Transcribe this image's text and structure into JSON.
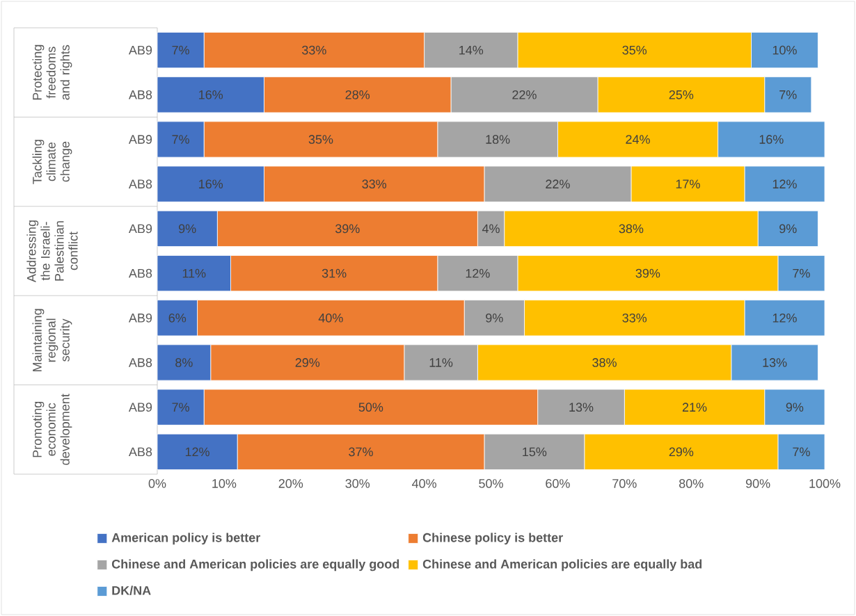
{
  "chart_data": {
    "type": "bar",
    "orientation": "horizontal",
    "stacked": true,
    "legend": "bottom",
    "categories": [
      "AB9",
      "AB8",
      "AB9",
      "AB8",
      "AB9",
      "AB8",
      "AB9",
      "AB8",
      "AB9",
      "AB8"
    ],
    "annotations": [
      "Protecting freedoms and rights",
      "Tackling climate change",
      "Addressing the Israeli-Palestinian conflict",
      "Maintaining regional security",
      "Promoting economic development"
    ],
    "xlim": [
      0,
      100
    ],
    "xticks": [
      {
        "value": 0,
        "label": "0%"
      },
      {
        "value": 10,
        "label": "10%"
      },
      {
        "value": 20,
        "label": "20%"
      },
      {
        "value": 30,
        "label": "30%"
      },
      {
        "value": 40,
        "label": "40%"
      },
      {
        "value": 50,
        "label": "50%"
      },
      {
        "value": 60,
        "label": "60%"
      },
      {
        "value": 70,
        "label": "70%"
      },
      {
        "value": 80,
        "label": "80%"
      },
      {
        "value": 90,
        "label": "90%"
      },
      {
        "value": 100,
        "label": "100%"
      }
    ],
    "series": [
      {
        "name": "American policy is better",
        "color": "#4472c4",
        "values": [
          7,
          16,
          7,
          16,
          9,
          11,
          6,
          8,
          7,
          12
        ],
        "value_labels": [
          "7%",
          "16%",
          "7%",
          "16%",
          "9%",
          "11%",
          "6%",
          "8%",
          "7%",
          "12%"
        ]
      },
      {
        "name": "Chinese policy is better",
        "color": "#ed7d31",
        "values": [
          33,
          28,
          35,
          33,
          39,
          31,
          40,
          29,
          50,
          37
        ],
        "value_labels": [
          "33%",
          "28%",
          "35%",
          "33%",
          "39%",
          "31%",
          "40%",
          "29%",
          "50%",
          "37%"
        ]
      },
      {
        "name": "Chinese and American policies are equally good",
        "color": "#a5a5a5",
        "values": [
          14,
          22,
          18,
          22,
          4,
          12,
          9,
          11,
          13,
          15
        ],
        "value_labels": [
          "14%",
          "22%",
          "18%",
          "22%",
          "4%",
          "12%",
          "9%",
          "11%",
          "13%",
          "15%"
        ]
      },
      {
        "name": "Chinese and American policies are equally bad",
        "color": "#ffc000",
        "values": [
          35,
          25,
          24,
          17,
          38,
          39,
          33,
          38,
          21,
          29
        ],
        "value_labels": [
          "35%",
          "25%",
          "24%",
          "17%",
          "38%",
          "39%",
          "33%",
          "38%",
          "21%",
          "29%"
        ]
      },
      {
        "name": "DK/NA",
        "color": "#5b9bd5",
        "values": [
          10,
          7,
          16,
          12,
          9,
          7,
          12,
          13,
          9,
          7
        ],
        "value_labels": [
          "10%",
          "7%",
          "16%",
          "12%",
          "9%",
          "7%",
          "12%",
          "13%",
          "9%",
          "7%"
        ]
      }
    ]
  }
}
